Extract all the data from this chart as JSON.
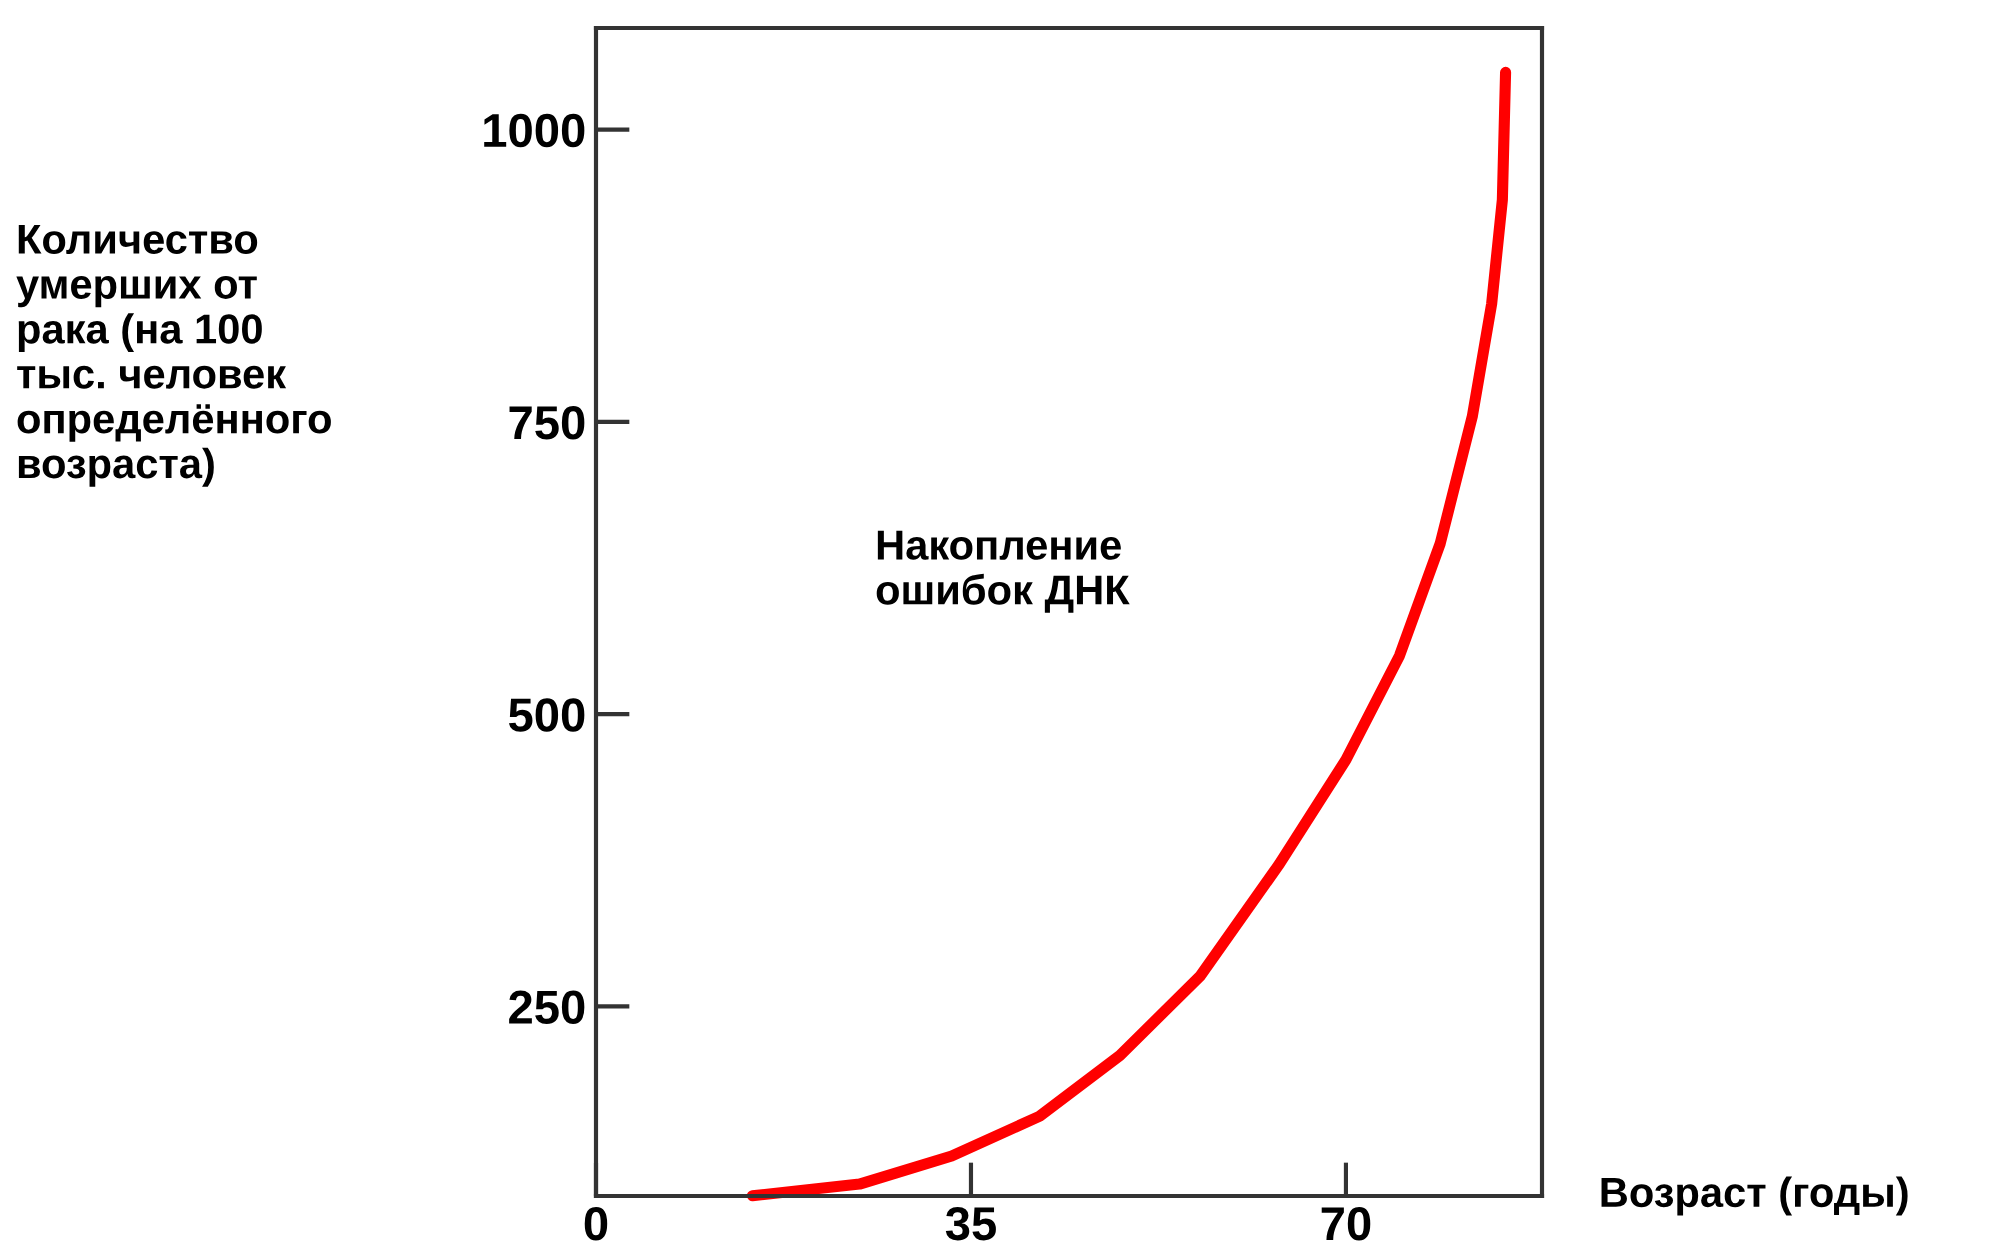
{
  "chart_data": {
    "type": "line",
    "xlabel": "Возраст (годы)",
    "ylabel": "Количество\nумерших от\nрака (на 100\nтыс. человек\nопределённого\nвозраста)",
    "annotations": [
      "Накопление\nошибок ДНК"
    ],
    "series": [
      {
        "color": "#ff0000",
        "x": [
          14.6,
          24.6,
          33.2,
          41.4,
          48.9,
          56.4,
          63.8,
          70,
          75.0,
          78.8,
          81.8,
          83.6,
          84.6,
          84.9
        ],
        "values": [
          88,
          98,
          122,
          156,
          208,
          276,
          372,
          461,
          550,
          646,
          755,
          851,
          940,
          1049
        ]
      }
    ],
    "xlim": [
      0,
      88.3
    ],
    "ylim": [
      87.8,
      1087
    ],
    "xticks": [
      0,
      35,
      70
    ],
    "yticks": [
      250,
      500,
      750,
      1000
    ],
    "grid": false,
    "legend": false,
    "marker": "none",
    "line_style": "solid"
  }
}
